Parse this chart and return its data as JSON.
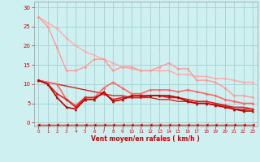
{
  "x": [
    0,
    1,
    2,
    3,
    4,
    5,
    6,
    7,
    8,
    9,
    10,
    11,
    12,
    13,
    14,
    15,
    16,
    17,
    18,
    19,
    20,
    21,
    22,
    23
  ],
  "background_color": "#cff0f0",
  "grid_color": "#aad4d4",
  "xlabel": "Vent moyen/en rafales ( km/h )",
  "tick_color": "#cc0000",
  "ylim": [
    -1.0,
    31.5
  ],
  "xlim": [
    -0.5,
    23.5
  ],
  "yticks": [
    0,
    5,
    10,
    15,
    20,
    25,
    30
  ],
  "lines": [
    {
      "y": [
        27.5,
        26.0,
        24.5,
        22.0,
        20.0,
        18.5,
        17.5,
        16.5,
        15.5,
        14.5,
        14.0,
        13.5,
        13.5,
        13.5,
        13.5,
        12.5,
        12.5,
        12.0,
        12.0,
        11.5,
        11.5,
        11.0,
        10.5,
        10.5
      ],
      "color": "#ffaaaa",
      "lw": 1.0,
      "marker": "D",
      "ms": 2.0
    },
    {
      "y": [
        27.5,
        25.0,
        19.5,
        13.5,
        13.5,
        14.5,
        16.5,
        16.5,
        13.5,
        14.5,
        14.5,
        13.5,
        13.5,
        14.5,
        15.5,
        14.0,
        14.0,
        11.0,
        11.0,
        10.5,
        9.0,
        7.0,
        7.0,
        6.5
      ],
      "color": "#ff9999",
      "lw": 1.0,
      "marker": "D",
      "ms": 2.0
    },
    {
      "y": [
        11.0,
        10.5,
        10.0,
        9.5,
        9.0,
        8.5,
        8.0,
        7.5,
        7.0,
        7.0,
        6.5,
        6.5,
        6.5,
        6.0,
        6.0,
        5.5,
        5.5,
        5.0,
        5.0,
        4.5,
        4.5,
        4.0,
        4.0,
        3.5
      ],
      "color": "#cc2222",
      "lw": 1.0,
      "marker": null,
      "ms": 0
    },
    {
      "y": [
        11.0,
        10.5,
        10.0,
        6.0,
        4.5,
        6.5,
        6.5,
        9.0,
        10.5,
        9.0,
        7.5,
        7.5,
        8.5,
        8.5,
        8.5,
        8.0,
        8.5,
        8.0,
        7.5,
        7.0,
        6.0,
        5.5,
        5.0,
        5.0
      ],
      "color": "#ff6666",
      "lw": 1.2,
      "marker": "D",
      "ms": 2.0
    },
    {
      "y": [
        11.0,
        10.0,
        7.5,
        6.0,
        4.0,
        6.5,
        6.5,
        7.5,
        6.0,
        6.5,
        6.5,
        6.5,
        7.0,
        7.0,
        6.5,
        6.5,
        6.0,
        5.5,
        5.5,
        5.0,
        4.5,
        3.5,
        3.5,
        3.5
      ],
      "color": "#dd2222",
      "lw": 1.2,
      "marker": "D",
      "ms": 2.0
    },
    {
      "y": [
        11.0,
        10.0,
        6.5,
        4.0,
        3.5,
        6.0,
        6.0,
        8.0,
        5.5,
        6.0,
        7.0,
        7.0,
        7.0,
        7.0,
        7.0,
        6.5,
        5.5,
        5.0,
        5.0,
        4.5,
        4.0,
        3.5,
        3.0,
        3.0
      ],
      "color": "#bb0000",
      "lw": 1.2,
      "marker": "^",
      "ms": 2.5
    },
    {
      "y": [
        -0.5,
        -0.5,
        -0.5,
        -0.5,
        -0.5,
        -0.5,
        -0.5,
        -0.5,
        -0.5,
        -0.5,
        -0.5,
        -0.5,
        -0.5,
        -0.5,
        -0.5,
        -0.5,
        -0.5,
        -0.5,
        -0.5,
        -0.5,
        -0.5,
        -0.5,
        -0.5,
        -0.5
      ],
      "color": "#dd0000",
      "lw": 0.8,
      "marker": "<",
      "ms": 3.0
    }
  ]
}
